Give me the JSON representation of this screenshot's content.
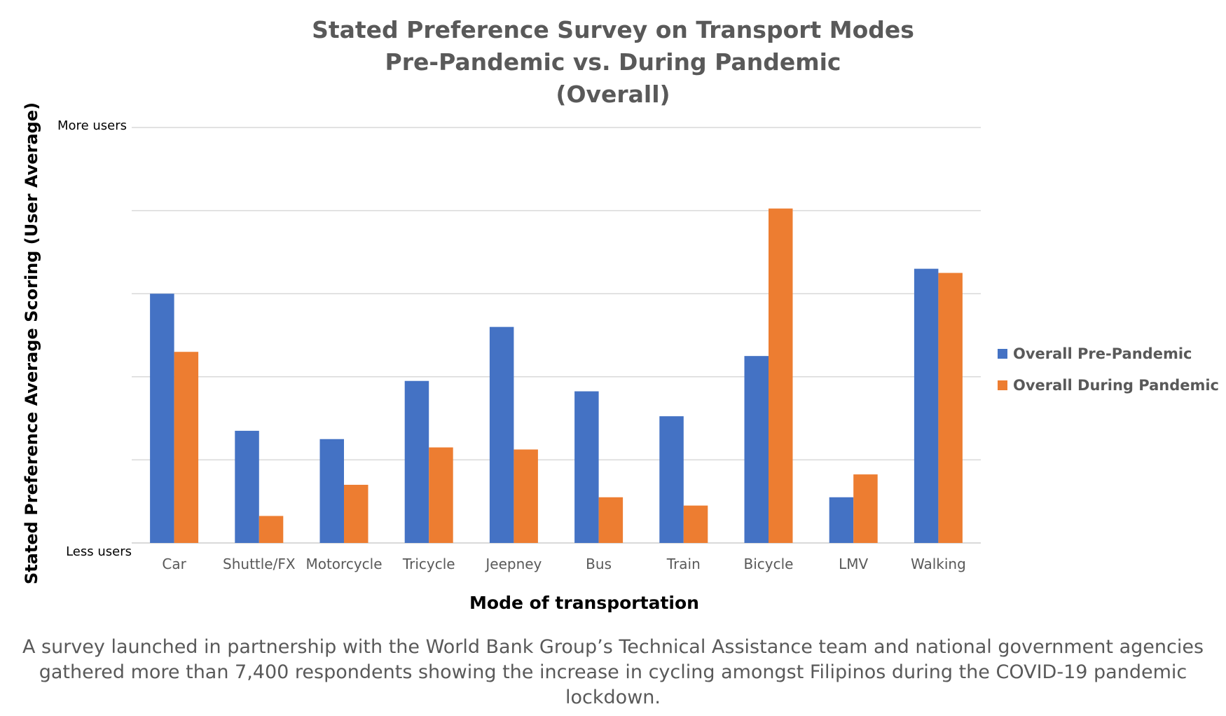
{
  "colors": {
    "pre": "#4472C4",
    "during": "#ED7D31",
    "grid": "#D9D9D9",
    "text": "#595959"
  },
  "chart_data": {
    "type": "bar",
    "title": [
      "Stated Preference Survey on Transport Modes",
      "Pre-Pandemic vs. During Pandemic",
      "(Overall)"
    ],
    "xlabel": "Mode of transportation",
    "ylabel": "Stated Preference Average Scoring (User Average)",
    "y_tick_labels": {
      "top": "More users",
      "bottom": "Less users"
    },
    "ylim": [
      0,
      100
    ],
    "y_gridlines": [
      0,
      20,
      40,
      60,
      80,
      100
    ],
    "grid": true,
    "legend_position": "right",
    "categories": [
      "Car",
      "Shuttle/FX",
      "Motorcycle",
      "Tricycle",
      "Jeepney",
      "Bus",
      "Train",
      "Bicycle",
      "LMV",
      "Walking"
    ],
    "series": [
      {
        "name": "Overall Pre-Pandemic",
        "values": [
          60,
          27,
          25,
          39,
          52,
          36.5,
          30.5,
          45,
          11,
          66
        ]
      },
      {
        "name": "Overall During Pandemic",
        "values": [
          46,
          6.5,
          14,
          23,
          22.5,
          11,
          9,
          80.5,
          16.5,
          65
        ]
      }
    ]
  },
  "caption": "A survey launched in partnership with the World Bank Group’s Technical Assistance team and national government agencies gathered more than 7,400 respondents showing the increase in cycling amongst Filipinos during the COVID-19 pandemic lockdown."
}
